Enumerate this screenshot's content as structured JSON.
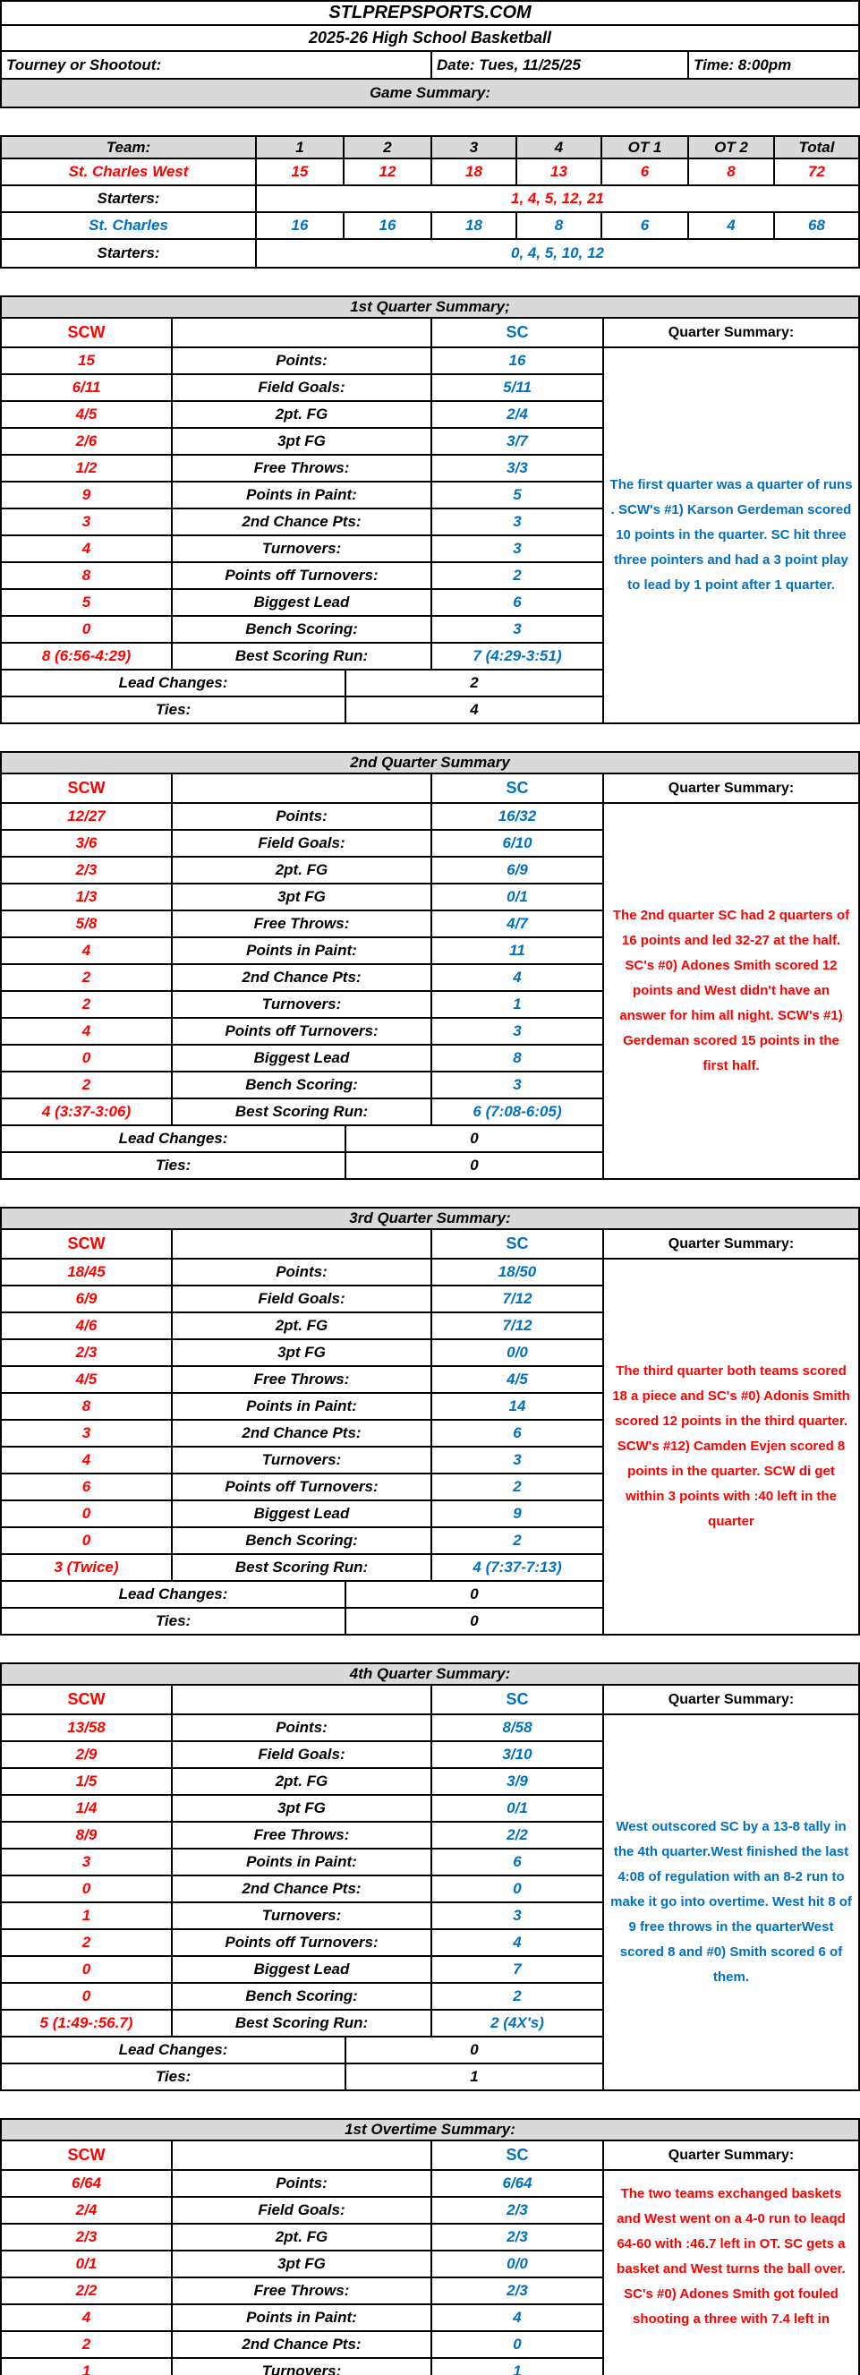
{
  "colors": {
    "scw": "#FF0000",
    "sc": "#0070C0",
    "section_header_bg": "#D9D9D9",
    "border": "#000000"
  },
  "header": {
    "site_title": "STLPREPSPORTS.COM",
    "season_title": "2025-26 High School Basketball",
    "tourney_label": "Tourney or Shootout:",
    "date_label": "Date: Tues, 11/25/25",
    "time_label": "Time: 8:00pm",
    "game_summary_label": "Game Summary:"
  },
  "score_table": {
    "header": [
      "Team:",
      "1",
      "2",
      "3",
      "4",
      "OT 1",
      "OT 2",
      "Total"
    ],
    "scw": {
      "name": "St. Charles West",
      "scores": [
        "15",
        "12",
        "18",
        "13",
        "6",
        "8",
        "72"
      ],
      "starters_label": "Starters:",
      "starters": "1, 4, 5, 12, 21"
    },
    "sc": {
      "name": "St. Charles",
      "scores": [
        "16",
        "16",
        "18",
        "8",
        "6",
        "4",
        "68"
      ],
      "starters_label": "Starters:",
      "starters": "0, 4, 5, 10, 12"
    }
  },
  "quarters": [
    {
      "title": "1st Quarter Summary;",
      "scw_label": "SCW",
      "sc_label": "SC",
      "summary_label": "Quarter Summary:",
      "rows": [
        {
          "label": "Points:",
          "scw": "15",
          "sc": "16"
        },
        {
          "label": "Field Goals:",
          "scw": "6/11",
          "sc": "5/11"
        },
        {
          "label": "2pt. FG",
          "scw": "4/5",
          "sc": "2/4"
        },
        {
          "label": "3pt FG",
          "scw": "2/6",
          "sc": "3/7"
        },
        {
          "label": "Free Throws:",
          "scw": "1/2",
          "sc": "3/3"
        },
        {
          "label": "Points in Paint:",
          "scw": "9",
          "sc": "5"
        },
        {
          "label": "2nd Chance Pts:",
          "scw": "3",
          "sc": "3"
        },
        {
          "label": "Turnovers:",
          "scw": "4",
          "sc": "3"
        },
        {
          "label": "Points off Turnovers:",
          "scw": "8",
          "sc": "2"
        },
        {
          "label": "Biggest Lead",
          "scw": "5",
          "sc": "6"
        },
        {
          "label": "Bench Scoring:",
          "scw": "0",
          "sc": "3"
        },
        {
          "label": "Best Scoring Run:",
          "scw": "8 (6:56-4:29)",
          "sc": "7 (4:29-3:51)"
        }
      ],
      "lead_changes_label": "Lead Changes:",
      "lead_changes": "2",
      "ties_label": "Ties:",
      "ties": "4",
      "summary": "The first quarter was a quarter of runs . SCW's #1) Karson Gerdeman scored 10 points in the quarter. SC hit three three pointers and had a 3 point play to lead by 1 point after 1 quarter.",
      "summary_color": "#0070C0"
    },
    {
      "title": "2nd Quarter Summary",
      "scw_label": "SCW",
      "sc_label": "SC",
      "summary_label": "Quarter Summary:",
      "rows": [
        {
          "label": "Points:",
          "scw": "12/27",
          "sc": "16/32"
        },
        {
          "label": "Field Goals:",
          "scw": "3/6",
          "sc": "6/10"
        },
        {
          "label": "2pt. FG",
          "scw": "2/3",
          "sc": "6/9"
        },
        {
          "label": "3pt FG",
          "scw": "1/3",
          "sc": "0/1"
        },
        {
          "label": "Free Throws:",
          "scw": "5/8",
          "sc": "4/7"
        },
        {
          "label": "Points in Paint:",
          "scw": "4",
          "sc": "11"
        },
        {
          "label": "2nd Chance Pts:",
          "scw": "2",
          "sc": "4"
        },
        {
          "label": "Turnovers:",
          "scw": "2",
          "sc": "1"
        },
        {
          "label": "Points off Turnovers:",
          "scw": "4",
          "sc": "3"
        },
        {
          "label": "Biggest Lead",
          "scw": "0",
          "sc": "8"
        },
        {
          "label": "Bench Scoring:",
          "scw": "2",
          "sc": "3"
        },
        {
          "label": "Best Scoring Run:",
          "scw": "4 (3:37-3:06)",
          "sc": "6 (7:08-6:05)"
        }
      ],
      "lead_changes_label": "Lead Changes:",
      "lead_changes": "0",
      "ties_label": "Ties:",
      "ties": "0",
      "summary": "The 2nd quarter SC had 2 quarters of 16 points and led 32-27 at the half. SC's #0) Adones Smith scored 12 points and West didn't have an answer for him all night. SCW's #1) Gerdeman scored 15 points in the first half.",
      "summary_color": "#FF0000"
    },
    {
      "title": "3rd Quarter Summary:",
      "scw_label": "SCW",
      "sc_label": "SC",
      "summary_label": "Quarter Summary:",
      "rows": [
        {
          "label": "Points:",
          "scw": "18/45",
          "sc": "18/50"
        },
        {
          "label": "Field Goals:",
          "scw": "6/9",
          "sc": "7/12"
        },
        {
          "label": "2pt. FG",
          "scw": "4/6",
          "sc": "7/12"
        },
        {
          "label": "3pt FG",
          "scw": "2/3",
          "sc": "0/0"
        },
        {
          "label": "Free Throws:",
          "scw": "4/5",
          "sc": "4/5"
        },
        {
          "label": "Points in Paint:",
          "scw": "8",
          "sc": "14"
        },
        {
          "label": "2nd Chance Pts:",
          "scw": "3",
          "sc": "6"
        },
        {
          "label": "Turnovers:",
          "scw": "4",
          "sc": "3"
        },
        {
          "label": "Points off Turnovers:",
          "scw": "6",
          "sc": "2"
        },
        {
          "label": "Biggest Lead",
          "scw": "0",
          "sc": "9"
        },
        {
          "label": "Bench Scoring:",
          "scw": "0",
          "sc": "2"
        },
        {
          "label": "Best Scoring Run:",
          "scw": "3 (Twice)",
          "sc": "4 (7:37-7:13)"
        }
      ],
      "lead_changes_label": "Lead Changes:",
      "lead_changes": "0",
      "ties_label": "Ties:",
      "ties": "0",
      "summary": "The third quarter both teams scored 18 a piece and SC's #0) Adonis Smith scored 12 points in the third quarter. SCW's #12) Camden Evjen scored 8 points in the quarter. SCW di get within 3 points with :40 left in the quarter",
      "summary_color": "#FF0000"
    },
    {
      "title": "4th Quarter Summary:",
      "scw_label": "SCW",
      "sc_label": "SC",
      "summary_label": "Quarter Summary:",
      "rows": [
        {
          "label": "Points:",
          "scw": "13/58",
          "sc": "8/58"
        },
        {
          "label": "Field Goals:",
          "scw": "2/9",
          "sc": "3/10"
        },
        {
          "label": "2pt. FG",
          "scw": "1/5",
          "sc": "3/9"
        },
        {
          "label": "3pt FG",
          "scw": "1/4",
          "sc": "0/1"
        },
        {
          "label": "Free Throws:",
          "scw": "8/9",
          "sc": "2/2"
        },
        {
          "label": "Points in Paint:",
          "scw": "3",
          "sc": "6"
        },
        {
          "label": "2nd Chance Pts:",
          "scw": "0",
          "sc": "0"
        },
        {
          "label": "Turnovers:",
          "scw": "1",
          "sc": "3"
        },
        {
          "label": "Points off Turnovers:",
          "scw": "2",
          "sc": "4"
        },
        {
          "label": "Biggest Lead",
          "scw": "0",
          "sc": "7"
        },
        {
          "label": "Bench Scoring:",
          "scw": "0",
          "sc": "2"
        },
        {
          "label": "Best Scoring Run:",
          "scw": "5 (1:49-:56.7)",
          "sc": "2 (4X's)"
        }
      ],
      "lead_changes_label": "Lead Changes:",
      "lead_changes": "0",
      "ties_label": "Ties:",
      "ties": "1",
      "summary": "West outscored SC by a 13-8 tally in the 4th quarter.West finished the last 4:08 of regulation with an 8-2 run to make it go into overtime. West hit 8 of 9 free throws in the quarterWest scored 8 and #0) Smith scored 6 of them.",
      "summary_color": "#0070C0"
    },
    {
      "title": "1st Overtime Summary:",
      "scw_label": "SCW",
      "sc_label": "SC",
      "summary_label": "Quarter Summary:",
      "rows": [
        {
          "label": "Points:",
          "scw": "6/64",
          "sc": "6/64"
        },
        {
          "label": "Field Goals:",
          "scw": "2/4",
          "sc": "2/3"
        },
        {
          "label": "2pt. FG",
          "scw": "2/3",
          "sc": "2/3"
        },
        {
          "label": "3pt FG",
          "scw": "0/1",
          "sc": "0/0"
        },
        {
          "label": "Free Throws:",
          "scw": "2/2",
          "sc": "2/3"
        },
        {
          "label": "Points in Paint:",
          "scw": "4",
          "sc": "4"
        },
        {
          "label": "2nd Chance Pts:",
          "scw": "2",
          "sc": "0"
        },
        {
          "label": "Turnovers:",
          "scw": "1",
          "sc": "1"
        }
      ],
      "summary": "The two teams exchanged baskets and West went on a 4-0 run to leaqd 64-60 with :46.7 left in OT. SC gets a basket and West turns the ball over. SC's #0) Adones Smith got fouled shooting a three with 7.4 left in",
      "summary_color": "#FF0000"
    }
  ]
}
